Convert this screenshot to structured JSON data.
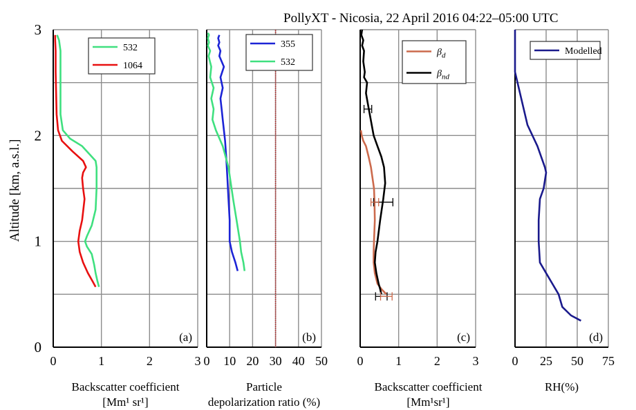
{
  "title": "PollyXT - Nicosia, 22 April 2016 04:22–05:00 UTC",
  "ylabel": "Altitude  [km, a.s.l.]",
  "yticks": [
    "0",
    "1",
    "2",
    "3"
  ],
  "chart_data": [
    {
      "type": "line",
      "panel_label": "(a)",
      "xlabel_lines": [
        "Backscatter coefficient",
        "[Mm¹ sr¹]"
      ],
      "xlim": [
        0,
        3
      ],
      "ylim": [
        0,
        3
      ],
      "xticks": [
        "0",
        "1",
        "2",
        "3"
      ],
      "legend": "top-right",
      "series": [
        {
          "name": "532",
          "color": "#3fe07f",
          "x": [
            0.95,
            0.92,
            0.88,
            0.85,
            0.8,
            0.7,
            0.66,
            0.7,
            0.8,
            0.88,
            0.9,
            0.9,
            0.9,
            0.88,
            0.6,
            0.35,
            0.2,
            0.15,
            0.15,
            0.15,
            0.15,
            0.12,
            0.08
          ],
          "y": [
            0.57,
            0.62,
            0.7,
            0.78,
            0.88,
            0.95,
            1.0,
            1.05,
            1.15,
            1.3,
            1.5,
            1.6,
            1.7,
            1.76,
            1.9,
            1.97,
            2.05,
            2.2,
            2.4,
            2.6,
            2.8,
            2.9,
            2.95
          ]
        },
        {
          "name": "1064",
          "color": "#e81010",
          "x": [
            0.88,
            0.82,
            0.72,
            0.62,
            0.55,
            0.52,
            0.55,
            0.6,
            0.65,
            0.62,
            0.6,
            0.62,
            0.68,
            0.62,
            0.4,
            0.18,
            0.1,
            0.07,
            0.06,
            0.05,
            0.05,
            0.04,
            0.04
          ],
          "y": [
            0.57,
            0.62,
            0.7,
            0.8,
            0.9,
            1.0,
            1.1,
            1.2,
            1.4,
            1.5,
            1.6,
            1.65,
            1.7,
            1.76,
            1.85,
            1.95,
            2.05,
            2.2,
            2.4,
            2.6,
            2.8,
            2.9,
            2.95
          ]
        }
      ]
    },
    {
      "type": "line",
      "panel_label": "(b)",
      "xlabel_lines": [
        "Particle",
        "depolarization ratio (%)"
      ],
      "xlim": [
        0,
        50
      ],
      "ylim": [
        0,
        3
      ],
      "xticks": [
        "0",
        "10",
        "20",
        "30",
        "40",
        "50"
      ],
      "reference_line_x": 30,
      "legend": "top-right",
      "series": [
        {
          "name": "355",
          "color": "#1c24d6",
          "x": [
            13.5,
            12.5,
            11.0,
            10.0,
            10.0,
            9.5,
            9.0,
            8.5,
            8.0,
            7.5,
            7.0,
            6.5,
            6.0,
            7.0,
            6.0,
            7.5,
            6.5,
            5.5,
            6.0,
            5.0,
            5.5,
            5.0,
            5.5
          ],
          "y": [
            0.72,
            0.8,
            0.9,
            1.0,
            1.2,
            1.4,
            1.6,
            1.8,
            1.95,
            2.05,
            2.15,
            2.25,
            2.35,
            2.45,
            2.55,
            2.65,
            2.7,
            2.75,
            2.8,
            2.85,
            2.88,
            2.92,
            2.95
          ]
        },
        {
          "name": "532",
          "color": "#3fe07f",
          "x": [
            16.5,
            16.0,
            15.0,
            14.5,
            13.0,
            11.5,
            9.5,
            7.0,
            4.0,
            2.5,
            3.0,
            2.0,
            3.0,
            1.5,
            2.0,
            0.8,
            1.5,
            0.5,
            1.0,
            0.5,
            1.0,
            0.5
          ],
          "y": [
            0.72,
            0.8,
            0.9,
            1.0,
            1.2,
            1.4,
            1.7,
            1.9,
            2.05,
            2.15,
            2.25,
            2.35,
            2.45,
            2.55,
            2.65,
            2.75,
            2.8,
            2.85,
            2.88,
            2.92,
            2.95,
            2.97
          ]
        }
      ]
    },
    {
      "type": "line",
      "panel_label": "(c)",
      "xlabel_lines": [
        "Backscatter coefficient",
        "[Mm¹sr¹]"
      ],
      "xlim": [
        0,
        3
      ],
      "ylim": [
        0,
        3
      ],
      "xticks": [
        "0",
        "1",
        "2",
        "3"
      ],
      "legend": "top-right",
      "series": [
        {
          "name": "β",
          "sub": "d",
          "color": "#cc6a4c",
          "x": [
            0.68,
            0.55,
            0.45,
            0.38,
            0.35,
            0.35,
            0.36,
            0.38,
            0.37,
            0.36,
            0.32,
            0.28,
            0.22,
            0.15,
            0.08,
            0.04,
            0.02
          ],
          "y": [
            0.5,
            0.55,
            0.6,
            0.7,
            0.8,
            0.9,
            1.0,
            1.2,
            1.4,
            1.5,
            1.6,
            1.7,
            1.8,
            1.9,
            1.95,
            2.0,
            2.05
          ]
        },
        {
          "name": "β",
          "sub": "nd",
          "color": "#000000",
          "x": [
            0.55,
            0.52,
            0.48,
            0.42,
            0.38,
            0.4,
            0.45,
            0.52,
            0.6,
            0.65,
            0.62,
            0.55,
            0.45,
            0.35,
            0.3,
            0.25,
            0.2,
            0.15,
            0.18,
            0.1,
            0.12,
            0.08,
            0.1,
            0.05,
            0.08,
            0.03,
            0.05
          ],
          "y": [
            0.5,
            0.55,
            0.6,
            0.7,
            0.8,
            0.9,
            1.0,
            1.2,
            1.4,
            1.55,
            1.7,
            1.8,
            1.9,
            2.0,
            2.1,
            2.2,
            2.3,
            2.4,
            2.5,
            2.55,
            2.6,
            2.7,
            2.8,
            2.85,
            2.9,
            2.95,
            3.0
          ]
        }
      ],
      "error_bars": [
        {
          "y": 2.25,
          "x": 0.2,
          "err": 0.1,
          "color": "#000000"
        },
        {
          "y": 1.37,
          "x": 0.6,
          "err": 0.25,
          "color": "#000000"
        },
        {
          "y": 1.37,
          "x": 0.38,
          "err": 0.1,
          "color": "#cc6a4c"
        },
        {
          "y": 0.48,
          "x": 0.55,
          "err": 0.15,
          "color": "#000000"
        },
        {
          "y": 0.48,
          "x": 0.68,
          "err": 0.15,
          "color": "#cc6a4c"
        }
      ]
    },
    {
      "type": "line",
      "panel_label": "(d)",
      "xlabel_lines": [
        "RH(%)"
      ],
      "xlim": [
        0,
        75
      ],
      "ylim": [
        0,
        3
      ],
      "xticks": [
        "0",
        "25",
        "50",
        "75"
      ],
      "legend": "top-right",
      "series": [
        {
          "name": "Modelled",
          "color": "#1a1a8c",
          "x": [
            53,
            45,
            38,
            35,
            30,
            25,
            20,
            19,
            19,
            20,
            23,
            25,
            24,
            18,
            10,
            5,
            0,
            0
          ],
          "y": [
            0.25,
            0.3,
            0.38,
            0.5,
            0.6,
            0.7,
            0.8,
            1.0,
            1.2,
            1.4,
            1.5,
            1.65,
            1.7,
            1.9,
            2.1,
            2.35,
            2.6,
            3.0
          ]
        }
      ]
    }
  ]
}
